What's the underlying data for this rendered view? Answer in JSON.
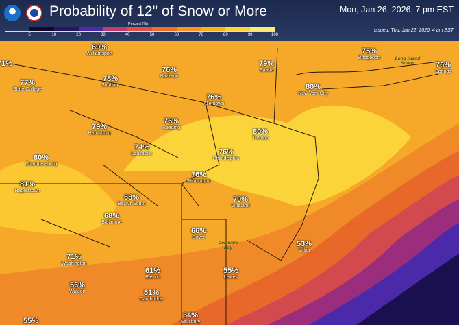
{
  "header": {
    "title": "Probability of 12\" of Snow or More",
    "valid_time": "Mon, Jan 26, 2026, 7 pm EST",
    "issued": "Issued: Thu, Jan 22, 2026, 4 am EST",
    "logos": [
      "NOAA",
      "National Weather Service"
    ]
  },
  "legend": {
    "label": "Percent (%)",
    "ticks": [
      "5",
      "10",
      "20",
      "30",
      "40",
      "50",
      "60",
      "70",
      "80",
      "90",
      "100"
    ],
    "colors": [
      "#0d0a2a",
      "#2a1460",
      "#4a2aa8",
      "#c03c6a",
      "#e0504a",
      "#f0702a",
      "#f7931e",
      "#f9b11e",
      "#fbd43a",
      "#fbe97a"
    ]
  },
  "cities": [
    {
      "pct": "69%",
      "name": "Williamsport"
    },
    {
      "pct": "71%",
      "name": ""
    },
    {
      "pct": "77%",
      "name": "State College"
    },
    {
      "pct": "78%",
      "name": "Sunbury"
    },
    {
      "pct": "76%",
      "name": "Hazleton"
    },
    {
      "pct": "76%",
      "name": "Allentown"
    },
    {
      "pct": "79%",
      "name": "Sparta"
    },
    {
      "pct": "75%",
      "name": "Bridgeport"
    },
    {
      "pct": "76%",
      "name": "Springs"
    },
    {
      "pct": "80%",
      "name": "New York City"
    },
    {
      "pct": "79%",
      "name": "Harrisburg"
    },
    {
      "pct": "76%",
      "name": "Reading"
    },
    {
      "pct": "80%",
      "name": "Trenton"
    },
    {
      "pct": "74%",
      "name": "Lancaster"
    },
    {
      "pct": "76%",
      "name": "Philadelphia"
    },
    {
      "pct": "80%",
      "name": "Chambersburg"
    },
    {
      "pct": "76%",
      "name": "Wilmington"
    },
    {
      "pct": "81%",
      "name": "Hagerstown"
    },
    {
      "pct": "68%",
      "name": "Bel Air South"
    },
    {
      "pct": "70%",
      "name": "Vineland"
    },
    {
      "pct": "68%",
      "name": "Baltimore"
    },
    {
      "pct": "66%",
      "name": "Dover"
    },
    {
      "pct": "53%",
      "name": "Villas"
    },
    {
      "pct": "71%",
      "name": "Washington"
    },
    {
      "pct": "61%",
      "name": "Easton"
    },
    {
      "pct": "55%",
      "name": "Lewes"
    },
    {
      "pct": "56%",
      "name": "Waldorf"
    },
    {
      "pct": "51%",
      "name": "Cambridge"
    },
    {
      "pct": "34%",
      "name": "Salisbury"
    },
    {
      "pct": "55%",
      "name": ""
    }
  ],
  "water": [
    {
      "name": "Long Island Sound"
    },
    {
      "name": "Delaware Bay"
    }
  ]
}
